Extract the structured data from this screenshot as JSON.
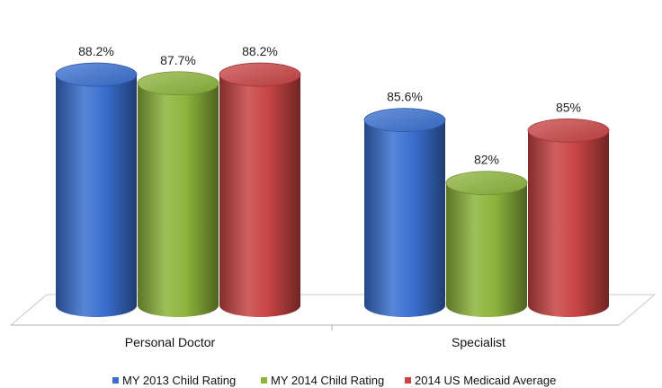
{
  "chart_data": {
    "type": "bar",
    "style": "3d-cylinder",
    "categories": [
      "Personal Doctor",
      "Specialist"
    ],
    "series": [
      {
        "name": "MY 2013 Child Rating",
        "values": [
          88.2,
          85.6
        ],
        "labels": [
          "88.2%",
          "85.6%"
        ],
        "color": "#3a6fd0"
      },
      {
        "name": "MY 2014 Child Rating",
        "values": [
          87.7,
          82
        ],
        "labels": [
          "87.7%",
          "82%"
        ],
        "color": "#8db43c"
      },
      {
        "name": "2014 US Medicaid Average",
        "values": [
          88.2,
          85
        ],
        "labels": [
          "88.2%",
          "85%"
        ],
        "color": "#c94444"
      }
    ],
    "ylim": [
      75,
      90
    ],
    "grid": false,
    "legend_position": "bottom"
  }
}
